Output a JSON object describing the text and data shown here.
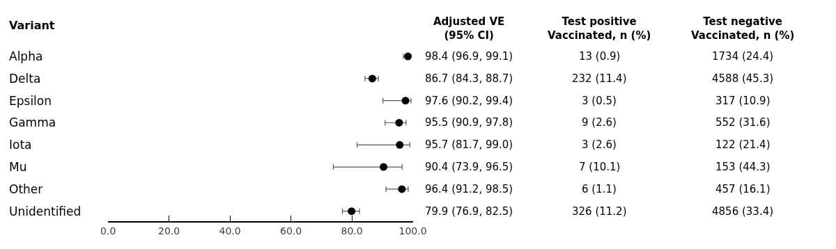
{
  "chart_data": {
    "type": "scatter",
    "orientation": "horizontal",
    "ylabel": "Variant",
    "categories": [
      "Alpha",
      "Delta",
      "Epsilon",
      "Gamma",
      "Iota",
      "Mu",
      "Other",
      "Unidentified"
    ],
    "values": [
      98.4,
      86.7,
      97.6,
      95.5,
      95.7,
      90.4,
      96.4,
      79.9
    ],
    "errors": [
      [
        96.9,
        99.1
      ],
      [
        84.3,
        88.7
      ],
      [
        90.2,
        99.4
      ],
      [
        90.9,
        97.8
      ],
      [
        81.7,
        99.0
      ],
      [
        73.9,
        96.5
      ],
      [
        91.2,
        98.5
      ],
      [
        76.9,
        82.5
      ]
    ],
    "value_labels": [
      "98.4 (96.9, 99.1)",
      "86.7 (84.3, 88.7)",
      "97.6 (90.2, 99.4)",
      "95.5 (90.9, 97.8)",
      "95.7 (81.7, 99.0)",
      "90.4 (73.9, 96.5)",
      "96.4 (91.2, 98.5)",
      "79.9 (76.9, 82.5)"
    ],
    "color": "#000000",
    "marker": "circle",
    "xlim": [
      0,
      100
    ],
    "xticks": [
      {
        "value": 0,
        "label": "0.0"
      },
      {
        "value": 20,
        "label": "20.0"
      },
      {
        "value": 40,
        "label": "40.0"
      },
      {
        "value": 60,
        "label": "60.0"
      },
      {
        "value": 80,
        "label": "80.0"
      },
      {
        "value": 100,
        "label": "100.0"
      }
    ],
    "legend": false,
    "annotations": [
      "Adjusted VE\n(95% CI)",
      "Test positive\nVaccinated, n (%)",
      "Test negative\nVaccinated, n (%)",
      "13 (0.9)",
      "232 (11.4)",
      "3 (0.5)",
      "9 (2.6)",
      "3 (2.6)",
      "7 (10.1)",
      "6 (1.1)",
      "326 (11.2)",
      "1734 (24.4)",
      "4588 (45.3)",
      "317 (10.9)",
      "552 (31.6)",
      "122 (21.4)",
      "153 (44.3)",
      "457 (16.1)",
      "4856 (33.4)"
    ]
  }
}
